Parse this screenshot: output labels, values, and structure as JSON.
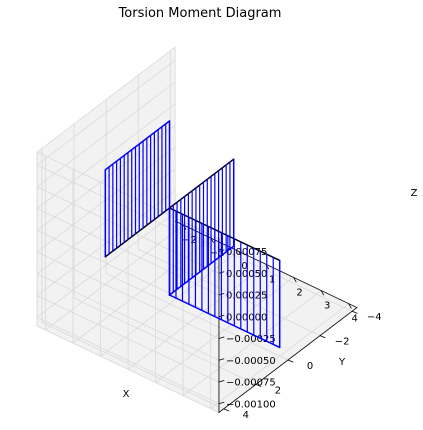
{
  "chart_data": {
    "type": "line",
    "projection": "3d",
    "title": "Torsion Moment Diagram",
    "xlabel": "X",
    "ylabel": "Y",
    "zlabel": "Z",
    "grid": true,
    "legend": "none",
    "xlim": [
      -2.3,
      4.3
    ],
    "ylim": [
      -4.3,
      4.3
    ],
    "zlim": [
      -0.0011,
      0.0009
    ],
    "x_ticks": [
      -2,
      -1,
      0,
      1,
      2,
      3,
      4
    ],
    "x_tick_labels": [
      "−2",
      "−1",
      "0",
      "1",
      "2",
      "3",
      "4"
    ],
    "y_ticks": [
      -4,
      -2,
      0,
      2,
      4
    ],
    "y_tick_labels": [
      "−4",
      "−2",
      "0",
      "2",
      "4"
    ],
    "z_ticks": [
      -0.001,
      -0.00075,
      -0.0005,
      -0.00025,
      0,
      0.00025,
      0.0005,
      0.00075
    ],
    "z_tick_labels": [
      "−0.00100",
      "−0.00075",
      "−0.00050",
      "−0.00025",
      "0.00000",
      "0.00025",
      "0.00050",
      "0.00075"
    ],
    "colors": {
      "structure": "#000000",
      "moment": "#0000ff",
      "pane": "#f2f2f2",
      "grid": "#d9d9d9"
    },
    "structure": [
      {
        "name": "member-y",
        "start": [
          0,
          -4,
          0
        ],
        "end": [
          0,
          4,
          0
        ]
      },
      {
        "name": "member-x",
        "start": [
          0,
          0,
          0
        ],
        "end": [
          4,
          0,
          0
        ]
      }
    ],
    "series": [
      {
        "axis": "y",
        "from": -4,
        "to": 0,
        "torsion": -0.001,
        "hatch_count": 17
      },
      {
        "axis": "y",
        "from": 0,
        "to": 4,
        "torsion": 0.001,
        "hatch_count": 17
      },
      {
        "axis": "x",
        "from": 0,
        "to": 4,
        "torsion": -0.001,
        "hatch_count": 17
      }
    ]
  }
}
